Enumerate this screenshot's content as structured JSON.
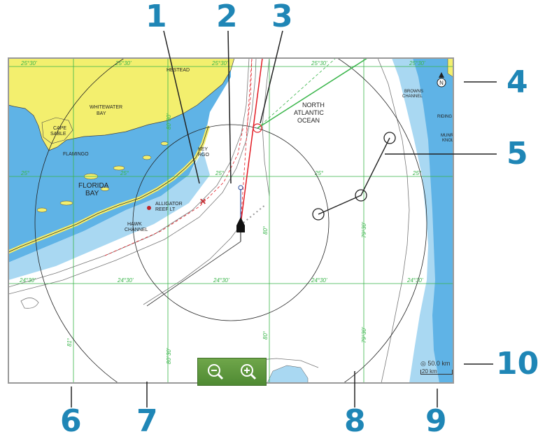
{
  "colors": {
    "land": "#f3ef6e",
    "shallow_water": "#5fb3e6",
    "mid_water": "#a9d8f2",
    "deep_water": "#ffffff",
    "grid": "#39b54a",
    "callout": "#1f86b6",
    "route": "#333333",
    "heading_line": "#e21b23"
  },
  "callouts": [
    "1",
    "2",
    "3",
    "4",
    "5",
    "6",
    "7",
    "8",
    "9",
    "10"
  ],
  "grid_labels": {
    "top_row": [
      "25°30'",
      "25°30'",
      "25°30'",
      "25°30'",
      "25°30'"
    ],
    "mid_row": [
      "25°",
      "25°",
      "25°",
      "25°",
      "25°"
    ],
    "bottom_row": [
      "24°30'",
      "24°30'",
      "24°30'",
      "24°30'",
      "24°30'"
    ],
    "v_labels": [
      "81°",
      "80°30'",
      "80°",
      "79°30'",
      "80°30'",
      "80°",
      "79°30'"
    ]
  },
  "place_labels": {
    "homestead": "HESTEAD",
    "whitewater": "WHITEWATER\nBAY",
    "cape_sable": "CAPE\nSABLE",
    "flamingo": "FLAMINGO",
    "florida_bay": "FLORIDA\nBAY",
    "north_atlantic": "NORTH\nATLANTIC\nOCEAN",
    "key_largo": "KEY\nRGO",
    "alligator": "ALLIGATOR\nREEF LT",
    "hawk": "HAWK\nCHANNEL",
    "browns": "BROWNS\nCHANNEL",
    "riding": "RIDING F",
    "munro": "MUNRO\nKNOL"
  },
  "scale": {
    "range": "50.0 km",
    "bar": "20 km"
  },
  "compass_label": "N",
  "icons": {
    "zoom_out": "zoom-out-icon",
    "zoom_in": "zoom-in-icon",
    "compass": "north-arrow-icon",
    "vessel": "vessel-icon",
    "waypoint": "waypoint-icon"
  }
}
